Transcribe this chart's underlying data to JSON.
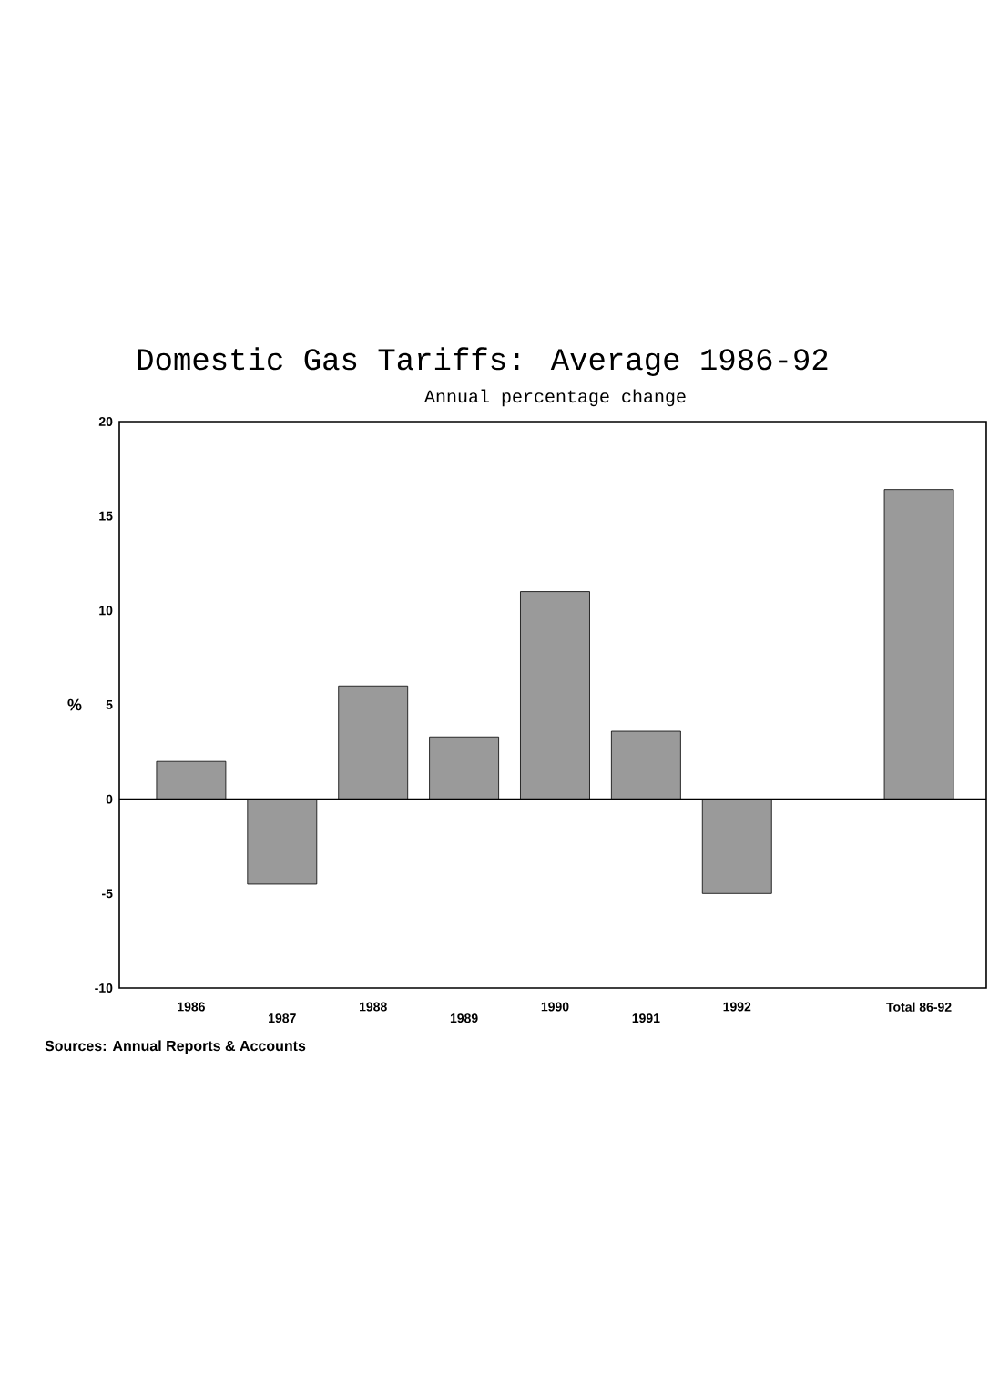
{
  "chart_data": {
    "type": "bar",
    "title": "Domestic Gas Tariffs: Average 1986-92",
    "subtitle": "Annual percentage change",
    "ylabel": "%",
    "categories": [
      "1986",
      "1987",
      "1988",
      "1989",
      "1990",
      "1991",
      "1992",
      null,
      "Total 86-92"
    ],
    "values": [
      2,
      -4.5,
      6,
      3.3,
      11,
      3.6,
      -5,
      null,
      16.4
    ],
    "color": "#9a9a9a",
    "ylim": [
      -10,
      20
    ],
    "yticks": [
      -10,
      -5,
      0,
      5,
      10,
      15,
      20
    ],
    "annotations": [
      "Sources: Annual Reports & Accounts"
    ]
  }
}
